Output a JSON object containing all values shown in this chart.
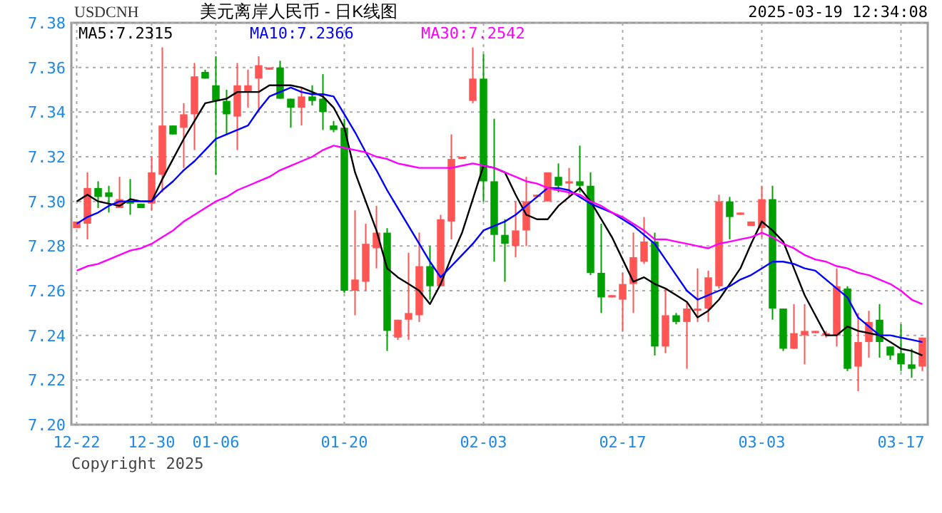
{
  "chart_data": {
    "type": "candlestick",
    "title": "美元离岸人民币 - 日K线图",
    "subtitle": "USDCNH",
    "annotations": [
      "2025-03-19 12:34:08",
      "Copyright 2025"
    ],
    "categories": [
      "12-22",
      null,
      null,
      null,
      null,
      null,
      null,
      "12-30",
      null,
      null,
      null,
      null,
      null,
      "01-06",
      null,
      null,
      null,
      null,
      null,
      null,
      null,
      null,
      null,
      null,
      null,
      "01-20",
      null,
      null,
      null,
      null,
      null,
      null,
      null,
      null,
      null,
      null,
      null,
      null,
      "02-03",
      null,
      null,
      null,
      null,
      null,
      null,
      null,
      null,
      null,
      null,
      null,
      null,
      "02-17",
      null,
      null,
      null,
      null,
      null,
      null,
      null,
      null,
      null,
      null,
      null,
      null,
      "03-03",
      null,
      null,
      null,
      null,
      null,
      null,
      null,
      null,
      null,
      null,
      null,
      null,
      "03-17",
      null,
      null
    ],
    "ohlc": [
      [
        7.288,
        7.291,
        7.288,
        7.291
      ],
      [
        7.29,
        7.313,
        7.283,
        7.306
      ],
      [
        7.306,
        7.309,
        7.297,
        7.302
      ],
      [
        7.304,
        7.307,
        7.295,
        7.302
      ],
      [
        7.297,
        7.311,
        7.297,
        7.301
      ],
      [
        7.3,
        7.31,
        7.294,
        7.299
      ],
      [
        7.299,
        7.299,
        7.297,
        7.297
      ],
      [
        7.299,
        7.32,
        7.296,
        7.313
      ],
      [
        7.312,
        7.369,
        7.304,
        7.334
      ],
      [
        7.334,
        7.334,
        7.33,
        7.33
      ],
      [
        7.333,
        7.344,
        7.315,
        7.339
      ],
      [
        7.339,
        7.362,
        7.323,
        7.356
      ],
      [
        7.358,
        7.359,
        7.355,
        7.355
      ],
      [
        7.352,
        7.365,
        7.312,
        7.345
      ],
      [
        7.345,
        7.35,
        7.33,
        7.339
      ],
      [
        7.338,
        7.362,
        7.323,
        7.352
      ],
      [
        7.349,
        7.359,
        7.342,
        7.352
      ],
      [
        7.355,
        7.365,
        7.34,
        7.361
      ],
      [
        7.359,
        7.36,
        7.359,
        7.36
      ],
      [
        7.36,
        7.363,
        7.346,
        7.346
      ],
      [
        7.346,
        7.346,
        7.333,
        7.342
      ],
      [
        7.342,
        7.351,
        7.334,
        7.347
      ],
      [
        7.347,
        7.352,
        7.343,
        7.345
      ],
      [
        7.346,
        7.357,
        7.332,
        7.34
      ],
      [
        7.334,
        7.336,
        7.331,
        7.332
      ],
      [
        7.333,
        7.337,
        7.259,
        7.26
      ],
      [
        7.26,
        7.296,
        7.249,
        7.265
      ],
      [
        7.264,
        7.29,
        7.26,
        7.281
      ],
      [
        7.279,
        7.298,
        7.27,
        7.286
      ],
      [
        7.286,
        7.288,
        7.233,
        7.242
      ],
      [
        7.239,
        7.247,
        7.238,
        7.247
      ],
      [
        7.247,
        7.277,
        7.238,
        7.25
      ],
      [
        7.249,
        7.286,
        7.246,
        7.271
      ],
      [
        7.271,
        7.28,
        7.256,
        7.262
      ],
      [
        7.262,
        7.294,
        7.262,
        7.292
      ],
      [
        7.291,
        7.33,
        7.283,
        7.319
      ],
      [
        7.319,
        7.32,
        7.319,
        7.32
      ],
      [
        7.345,
        7.369,
        7.344,
        7.355
      ],
      [
        7.355,
        7.366,
        7.3,
        7.309
      ],
      [
        7.309,
        7.337,
        7.273,
        7.285
      ],
      [
        7.285,
        7.292,
        7.264,
        7.281
      ],
      [
        7.28,
        7.3,
        7.275,
        7.287
      ],
      [
        7.287,
        7.311,
        7.28,
        7.3
      ],
      [
        7.302,
        7.303,
        7.302,
        7.303
      ],
      [
        7.3,
        7.313,
        7.3,
        7.313
      ],
      [
        7.311,
        7.317,
        7.304,
        7.307
      ],
      [
        7.308,
        7.315,
        7.302,
        7.309
      ],
      [
        7.309,
        7.325,
        7.304,
        7.307
      ],
      [
        7.307,
        7.313,
        7.267,
        7.268
      ],
      [
        7.268,
        7.29,
        7.25,
        7.257
      ],
      [
        7.257,
        7.258,
        7.257,
        7.258
      ],
      [
        7.256,
        7.268,
        7.242,
        7.263
      ],
      [
        7.263,
        7.286,
        7.25,
        7.275
      ],
      [
        7.273,
        7.293,
        7.272,
        7.282
      ],
      [
        7.282,
        7.286,
        7.231,
        7.235
      ],
      [
        7.235,
        7.261,
        7.232,
        7.249
      ],
      [
        7.249,
        7.25,
        7.245,
        7.246
      ],
      [
        7.246,
        7.255,
        7.225,
        7.252
      ],
      [
        7.251,
        7.27,
        7.246,
        7.252
      ],
      [
        7.252,
        7.269,
        7.246,
        7.266
      ],
      [
        7.262,
        7.303,
        7.261,
        7.3
      ],
      [
        7.3,
        7.302,
        7.283,
        7.293
      ],
      [
        7.294,
        7.295,
        7.294,
        7.295
      ],
      [
        7.289,
        7.291,
        7.289,
        7.291
      ],
      [
        7.288,
        7.307,
        7.284,
        7.301
      ],
      [
        7.301,
        7.307,
        7.247,
        7.252
      ],
      [
        7.252,
        7.252,
        7.233,
        7.234
      ],
      [
        7.234,
        7.254,
        7.234,
        7.241
      ],
      [
        7.24,
        7.254,
        7.227,
        7.242
      ],
      [
        7.241,
        7.242,
        7.241,
        7.242
      ],
      [
        7.24,
        7.242,
        7.239,
        7.241
      ],
      [
        7.24,
        7.27,
        7.235,
        7.262
      ],
      [
        7.261,
        7.262,
        7.224,
        7.225
      ],
      [
        7.226,
        7.25,
        7.215,
        7.237
      ],
      [
        7.237,
        7.251,
        7.23,
        7.246
      ],
      [
        7.247,
        7.254,
        7.23,
        7.237
      ],
      [
        7.235,
        7.235,
        7.229,
        7.231
      ],
      [
        7.232,
        7.245,
        7.224,
        7.227
      ],
      [
        7.227,
        7.234,
        7.221,
        7.225
      ],
      [
        7.226,
        7.239,
        7.224,
        7.239
      ]
    ],
    "colors": [
      "#ff5555",
      "#ff5555",
      "#00a000",
      "#00a000",
      "#ff5555",
      "#00a000",
      "#00a000",
      "#ff5555",
      "#ff5555",
      "#00a000",
      "#ff5555",
      "#ff5555",
      "#00a000",
      "#00a000",
      "#00a000",
      "#ff5555",
      "#ff5555",
      "#ff5555",
      "#ff5555",
      "#00a000",
      "#00a000",
      "#ff5555",
      "#00a000",
      "#00a000",
      "#00a000",
      "#00a000",
      "#ff5555",
      "#ff5555",
      "#ff5555",
      "#00a000",
      "#ff5555",
      "#ff5555",
      "#ff5555",
      "#00a000",
      "#ff5555",
      "#ff5555",
      "#ff5555",
      "#ff5555",
      "#00a000",
      "#00a000",
      "#00a000",
      "#ff5555",
      "#ff5555",
      "#ff5555",
      "#ff5555",
      "#00a000",
      "#ff5555",
      "#00a000",
      "#00a000",
      "#00a000",
      "#ff5555",
      "#ff5555",
      "#ff5555",
      "#ff5555",
      "#00a000",
      "#ff5555",
      "#00a000",
      "#ff5555",
      "#ff5555",
      "#ff5555",
      "#ff5555",
      "#00a000",
      "#ff5555",
      "#ff5555",
      "#ff5555",
      "#00a000",
      "#00a000",
      "#ff5555",
      "#ff5555",
      "#ff5555",
      "#ff5555",
      "#ff5555",
      "#00a000",
      "#ff5555",
      "#ff5555",
      "#00a000",
      "#00a000",
      "#00a000",
      "#00a000",
      "#ff5555"
    ],
    "series": [
      {
        "type": "line",
        "name": "MA5:7.2315",
        "color": "#000000",
        "values": [
          7.3,
          7.303,
          7.3,
          7.299,
          7.298,
          7.301,
          7.3,
          7.3,
          7.31,
          7.319,
          7.328,
          7.336,
          7.344,
          7.345,
          7.346,
          7.349,
          7.349,
          7.349,
          7.352,
          7.352,
          7.352,
          7.351,
          7.349,
          7.347,
          7.342,
          7.333,
          7.313,
          7.3,
          7.287,
          7.27,
          7.266,
          7.263,
          7.26,
          7.254,
          7.263,
          7.275,
          7.286,
          7.301,
          7.316,
          7.315,
          7.313,
          7.303,
          7.294,
          7.292,
          7.292,
          7.298,
          7.302,
          7.306,
          7.3,
          7.292,
          7.284,
          7.274,
          7.264,
          7.266,
          7.263,
          7.261,
          7.258,
          7.255,
          7.248,
          7.251,
          7.256,
          7.263,
          7.27,
          7.281,
          7.291,
          7.287,
          7.282,
          7.27,
          7.258,
          7.249,
          7.24,
          7.24,
          7.244,
          7.242,
          7.241,
          7.24,
          7.237,
          7.234,
          7.233,
          7.231
        ]
      },
      {
        "type": "line",
        "name": "MA10:7.2366",
        "color": "#0000ff",
        "values": [
          7.29,
          7.293,
          7.295,
          7.298,
          7.3,
          7.3,
          7.3,
          7.3,
          7.305,
          7.309,
          7.314,
          7.318,
          7.323,
          7.328,
          7.33,
          7.332,
          7.334,
          7.341,
          7.347,
          7.349,
          7.351,
          7.349,
          7.348,
          7.348,
          7.347,
          7.339,
          7.331,
          7.322,
          7.314,
          7.305,
          7.297,
          7.289,
          7.281,
          7.273,
          7.266,
          7.271,
          7.276,
          7.281,
          7.287,
          7.289,
          7.291,
          7.294,
          7.298,
          7.302,
          7.306,
          7.306,
          7.305,
          7.302,
          7.299,
          7.297,
          7.295,
          7.292,
          7.289,
          7.285,
          7.281,
          7.274,
          7.267,
          7.26,
          7.256,
          7.258,
          7.26,
          7.262,
          7.265,
          7.267,
          7.27,
          7.273,
          7.273,
          7.272,
          7.27,
          7.269,
          7.265,
          7.261,
          7.257,
          7.248,
          7.244,
          7.24,
          7.24,
          7.239,
          7.238,
          7.237
        ]
      },
      {
        "type": "line",
        "name": "MA30:7.2542",
        "color": "#ff00ff",
        "values": [
          7.269,
          7.271,
          7.272,
          7.274,
          7.276,
          7.278,
          7.279,
          7.281,
          7.284,
          7.287,
          7.291,
          7.294,
          7.297,
          7.3,
          7.302,
          7.305,
          7.307,
          7.309,
          7.311,
          7.314,
          7.316,
          7.318,
          7.32,
          7.323,
          7.325,
          7.324,
          7.323,
          7.322,
          7.32,
          7.319,
          7.317,
          7.316,
          7.315,
          7.315,
          7.315,
          7.315,
          7.316,
          7.317,
          7.316,
          7.315,
          7.313,
          7.311,
          7.309,
          7.308,
          7.306,
          7.305,
          7.304,
          7.303,
          7.3,
          7.298,
          7.295,
          7.293,
          7.29,
          7.287,
          7.283,
          7.283,
          7.282,
          7.281,
          7.28,
          7.279,
          7.281,
          7.282,
          7.283,
          7.284,
          7.286,
          7.284,
          7.281,
          7.279,
          7.276,
          7.274,
          7.273,
          7.271,
          7.27,
          7.268,
          7.267,
          7.265,
          7.263,
          7.26,
          7.256,
          7.254
        ]
      }
    ],
    "ylim": [
      7.2,
      7.38
    ],
    "yticks": [
      {
        "value": 7.2,
        "label": "7.20"
      },
      7.22,
      7.24,
      7.26,
      7.28,
      {
        "value": 7.3,
        "label": "7.30"
      },
      7.32,
      7.34,
      7.36,
      7.38
    ],
    "grid": true,
    "legend": "top left"
  }
}
